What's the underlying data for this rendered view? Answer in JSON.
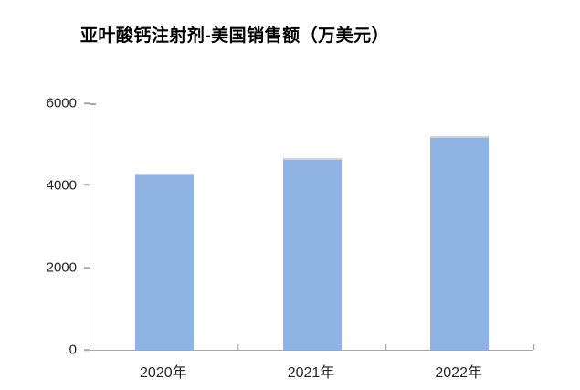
{
  "chart_data": {
    "type": "bar",
    "title": "亚叶酸钙注射剂-美国销售额（万美元）",
    "categories": [
      "2020年",
      "2021年",
      "2022年"
    ],
    "values": [
      4300,
      4670,
      5200
    ],
    "xlabel": "",
    "ylabel": "",
    "ylim": [
      0,
      6000
    ],
    "yticks": [
      0,
      2000,
      4000,
      6000
    ],
    "grid": false,
    "legend": "none",
    "colors": {
      "bar_fill": "#8FB3E2",
      "bar_edge": "#C3D4EE",
      "axis": "#A6A6A6",
      "text": "#262626",
      "background": "#FFFFFF"
    }
  }
}
